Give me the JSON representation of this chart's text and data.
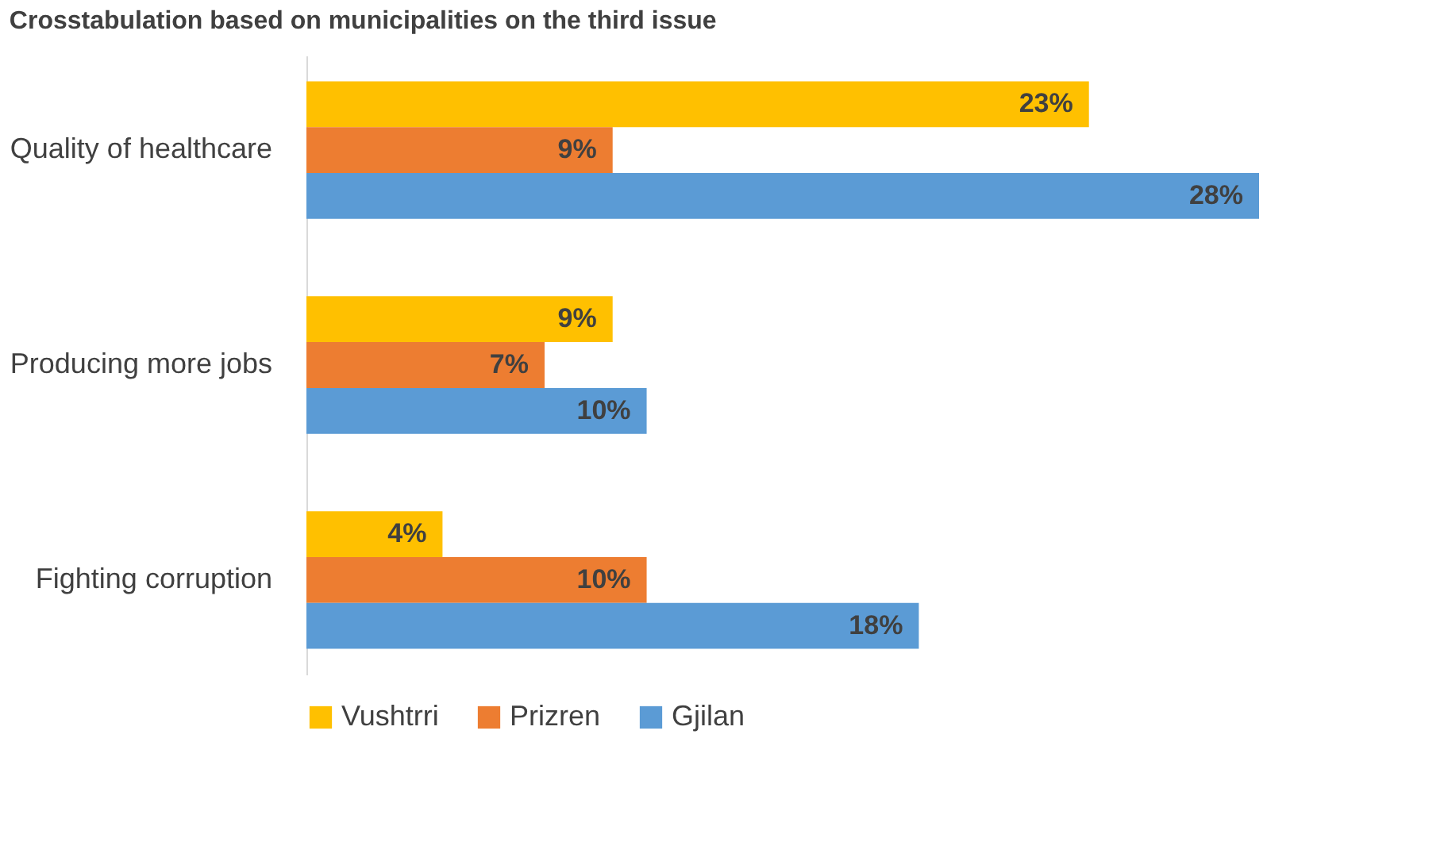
{
  "chart_data": {
    "type": "bar",
    "orientation": "horizontal",
    "title": "Crosstabulation based on municipalities on the third issue",
    "categories": [
      "Quality of healthcare",
      "Producing more jobs",
      "Fighting corruption"
    ],
    "series": [
      {
        "name": "Vushtrri",
        "color": "#ffc000",
        "values": [
          23,
          9,
          4
        ],
        "value_labels": [
          "23%",
          "9%",
          "4%"
        ]
      },
      {
        "name": "Prizren",
        "color": "#ed7d31",
        "values": [
          9,
          7,
          10
        ],
        "value_labels": [
          "9%",
          "7%",
          "10%"
        ]
      },
      {
        "name": "Gjilan",
        "color": "#5b9bd5",
        "values": [
          28,
          10,
          18
        ],
        "value_labels": [
          "28%",
          "10%",
          "18%"
        ]
      }
    ],
    "legend": "bottom",
    "grid": false
  }
}
